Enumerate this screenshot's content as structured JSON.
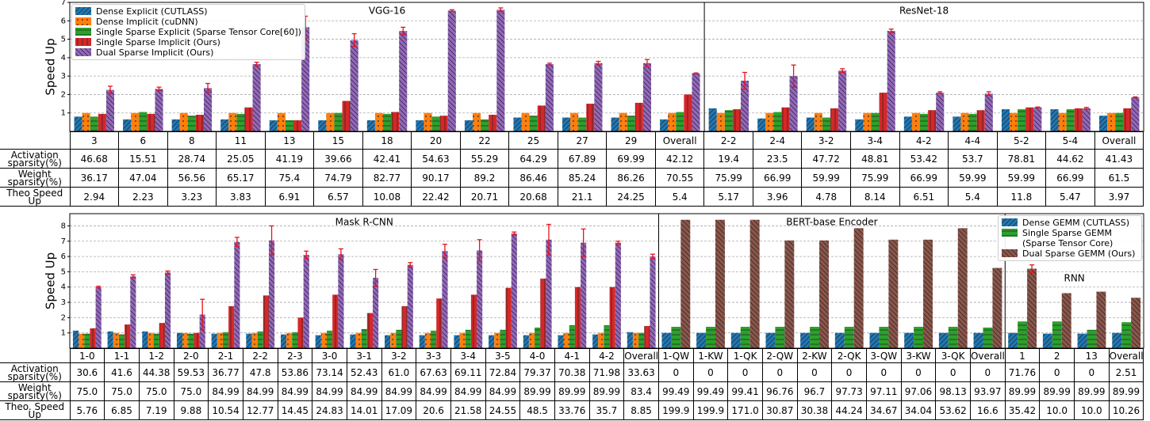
{
  "chart_data": [
    {
      "type": "bar",
      "y_label": "Speed Up",
      "ylim": [
        0,
        7
      ],
      "yticks": [
        1,
        2,
        3,
        4,
        5,
        6,
        7
      ],
      "grid": true,
      "legend": "upper left",
      "groups": [
        {
          "name": "VGG-16",
          "categories": [
            "3",
            "6",
            "8",
            "11",
            "13",
            "15",
            "18",
            "20",
            "22",
            "25",
            "27",
            "29",
            "Overall"
          ]
        },
        {
          "name": "ResNet-18",
          "categories": [
            "2-2",
            "2-4",
            "3-2",
            "3-4",
            "4-2",
            "4-4",
            "5-2",
            "5-4",
            "Overall"
          ]
        }
      ],
      "series": [
        {
          "name": "Dense Explicit (CUTLASS)",
          "color": "#1f77b4",
          "hatch": "/",
          "values": [
            0.8,
            0.65,
            0.65,
            0.65,
            0.6,
            0.6,
            0.6,
            0.6,
            0.6,
            0.75,
            0.75,
            0.75,
            0.65,
            1.25,
            0.7,
            0.75,
            0.65,
            0.8,
            0.8,
            1.2,
            1.2,
            0.85
          ]
        },
        {
          "name": "Dense Implicit (cuDNN)",
          "color": "#ff7f0e",
          "hatch": ".",
          "values": [
            1.0,
            1.0,
            1.0,
            1.0,
            1.0,
            1.0,
            1.0,
            1.0,
            1.0,
            1.0,
            1.0,
            1.0,
            1.0,
            1.0,
            1.0,
            1.0,
            1.0,
            1.0,
            1.0,
            1.0,
            1.0,
            1.0
          ]
        },
        {
          "name": "Single Sparse Explicit (Sparse Tensor Core[60])",
          "color": "#2ca02c",
          "hatch": "-",
          "values": [
            0.8,
            1.05,
            0.85,
            0.95,
            0.6,
            1.0,
            0.95,
            0.8,
            0.65,
            0.85,
            0.75,
            0.85,
            1.05,
            1.15,
            1.05,
            0.75,
            1.0,
            0.95,
            0.95,
            1.2,
            1.2,
            1.0
          ]
        },
        {
          "name": "Single Sparse Implicit (Ours)",
          "color": "#d62728",
          "hatch": "|",
          "values": [
            0.95,
            0.95,
            0.9,
            1.3,
            0.6,
            1.65,
            1.05,
            0.85,
            0.9,
            1.4,
            1.5,
            1.55,
            2.0,
            1.2,
            1.3,
            1.25,
            2.1,
            1.15,
            1.15,
            1.3,
            1.25,
            1.25
          ]
        },
        {
          "name": "Dual Sparse Implicit (Ours)",
          "color": "#9467bd",
          "hatch": "\\",
          "values": [
            2.25,
            2.3,
            2.35,
            3.65,
            5.65,
            4.95,
            5.45,
            6.55,
            6.6,
            3.65,
            3.7,
            3.7,
            3.15,
            2.75,
            3.0,
            3.3,
            5.45,
            2.1,
            2.05,
            1.3,
            1.25,
            1.85
          ],
          "errors": [
            0.2,
            0.1,
            0.25,
            0.1,
            0.6,
            0.35,
            0.2,
            0.05,
            0.1,
            0.05,
            0.1,
            0.2,
            0.02,
            0.45,
            0.6,
            0.1,
            0.1,
            0.05,
            0.1,
            0.02,
            0.05,
            0.02
          ]
        }
      ],
      "table": {
        "rows": [
          {
            "label": "Activation sparsity(%)",
            "values": [
              "46.68",
              "15.51",
              "28.74",
              "25.05",
              "41.19",
              "39.66",
              "42.41",
              "54.63",
              "55.29",
              "64.29",
              "67.89",
              "69.99",
              "42.12",
              "19.4",
              "23.5",
              "47.72",
              "48.81",
              "53.42",
              "53.7",
              "78.81",
              "44.62",
              "41.43"
            ]
          },
          {
            "label": "Weight sparsity(%)",
            "values": [
              "36.17",
              "47.04",
              "56.56",
              "65.17",
              "75.4",
              "74.79",
              "82.77",
              "90.17",
              "89.2",
              "86.46",
              "85.24",
              "86.26",
              "70.55",
              "75.99",
              "66.99",
              "59.99",
              "75.99",
              "66.99",
              "59.99",
              "59.99",
              "66.99",
              "61.5"
            ]
          },
          {
            "label": "Theo Speed Up",
            "values": [
              "2.94",
              "2.23",
              "3.23",
              "3.83",
              "6.91",
              "6.57",
              "10.08",
              "22.42",
              "20.71",
              "20.68",
              "21.1",
              "24.25",
              "5.4",
              "5.17",
              "3.96",
              "4.78",
              "8.14",
              "6.51",
              "5.4",
              "11.8",
              "5.47",
              "3.97"
            ]
          }
        ]
      }
    },
    {
      "type": "bar",
      "y_label": "Speed Up",
      "ylim": [
        0,
        8.8
      ],
      "yticks": [
        1,
        2,
        3,
        4,
        5,
        6,
        7,
        8
      ],
      "grid": true,
      "legend": "upper right",
      "groups": [
        {
          "name": "Mask R-CNN",
          "categories": [
            "1-0",
            "1-1",
            "1-2",
            "2-0",
            "2-1",
            "2-2",
            "2-3",
            "3-0",
            "3-1",
            "3-2",
            "3-3",
            "3-4",
            "3-5",
            "4-0",
            "4-1",
            "4-2",
            "Overall"
          ]
        },
        {
          "name": "BERT-base Encoder",
          "categories": [
            "1-QW",
            "1-KW",
            "1-QK",
            "2-QW",
            "2-KW",
            "2-QK",
            "3-QW",
            "3-KW",
            "3-QK",
            "Overall"
          ]
        },
        {
          "name": "RNN",
          "categories": [
            "1",
            "2",
            "13",
            "Overall"
          ]
        }
      ],
      "series": [
        {
          "color": "#1f77b4",
          "hatch": "/",
          "values": [
            1.15,
            1.1,
            1.1,
            1.0,
            0.95,
            0.95,
            0.9,
            0.85,
            0.9,
            0.85,
            0.85,
            0.85,
            0.85,
            0.85,
            0.85,
            0.9,
            1.05,
            null,
            null,
            null,
            null,
            null,
            null,
            null,
            null,
            null,
            null,
            null,
            null,
            null,
            null
          ]
        },
        {
          "color": "#ff7f0e",
          "hatch": ".",
          "values": [
            0.95,
            1.0,
            1.0,
            1.0,
            1.0,
            1.0,
            1.0,
            1.0,
            1.0,
            1.0,
            1.0,
            1.0,
            1.0,
            1.0,
            1.0,
            1.0,
            1.0,
            null,
            null,
            null,
            null,
            null,
            null,
            null,
            null,
            null,
            null,
            null,
            null,
            null,
            null
          ]
        },
        {
          "color": "#2ca02c",
          "hatch": "-",
          "values": [
            0.95,
            0.9,
            0.95,
            0.95,
            1.05,
            1.1,
            1.05,
            1.15,
            1.25,
            1.2,
            1.15,
            1.2,
            1.2,
            1.35,
            1.5,
            1.5,
            1.0,
            null,
            null,
            null,
            null,
            null,
            null,
            null,
            null,
            null,
            null,
            null,
            null,
            null,
            null
          ]
        },
        {
          "color": "#d62728",
          "hatch": "|",
          "values": [
            1.3,
            1.55,
            1.65,
            1.0,
            2.75,
            3.45,
            2.0,
            3.5,
            2.3,
            2.75,
            3.25,
            3.5,
            3.95,
            4.55,
            4.0,
            4.0,
            1.45,
            null,
            null,
            null,
            null,
            null,
            null,
            null,
            null,
            null,
            null,
            null,
            null,
            null,
            null
          ]
        },
        {
          "color": "#9467bd",
          "hatch": "\\",
          "values": [
            4.0,
            4.7,
            4.95,
            2.2,
            6.95,
            7.05,
            6.1,
            6.15,
            4.6,
            5.45,
            6.35,
            6.4,
            7.5,
            7.1,
            6.9,
            6.9,
            6.0,
            null,
            null,
            null,
            null,
            null,
            null,
            null,
            null,
            null,
            null,
            null,
            null,
            null,
            null
          ],
          "errors": [
            0.05,
            0.1,
            0.1,
            1.0,
            0.3,
            0.95,
            0.25,
            0.35,
            0.55,
            0.15,
            0.45,
            0.7,
            0.1,
            1.0,
            0.9,
            0.1,
            0.15,
            null,
            null,
            null,
            null,
            null,
            null,
            null,
            null,
            null,
            null,
            null,
            null,
            null,
            null
          ]
        },
        {
          "name": "Dense GEMM (CUTLASS)",
          "color": "#1f77b4",
          "hatch": "/",
          "values": [
            null,
            null,
            null,
            null,
            null,
            null,
            null,
            null,
            null,
            null,
            null,
            null,
            null,
            null,
            null,
            null,
            null,
            1.0,
            1.0,
            1.0,
            1.0,
            1.0,
            1.0,
            1.0,
            1.0,
            1.0,
            1.0,
            1.0,
            0.95,
            0.95,
            1.0
          ]
        },
        {
          "name": "Single Sparse GEMM (Sparse Tensor Core)",
          "color": "#2ca02c",
          "hatch": "-",
          "values": [
            null,
            null,
            null,
            null,
            null,
            null,
            null,
            null,
            null,
            null,
            null,
            null,
            null,
            null,
            null,
            null,
            null,
            1.4,
            1.4,
            1.4,
            1.4,
            1.4,
            1.4,
            1.4,
            1.4,
            1.4,
            1.35,
            1.75,
            1.75,
            1.2,
            1.7
          ]
        },
        {
          "name": "Dual Sparse GEMM (Ours)",
          "color": "#8c564b",
          "hatch": "\\",
          "values": [
            null,
            null,
            null,
            null,
            null,
            null,
            null,
            null,
            null,
            null,
            null,
            null,
            null,
            null,
            null,
            null,
            null,
            8.4,
            8.4,
            8.4,
            7.05,
            7.05,
            7.85,
            7.1,
            7.1,
            7.85,
            5.25,
            5.2,
            3.6,
            3.7,
            3.3
          ],
          "errors": [
            null,
            null,
            null,
            null,
            null,
            null,
            null,
            null,
            null,
            null,
            null,
            null,
            null,
            null,
            null,
            null,
            null,
            null,
            null,
            null,
            null,
            null,
            null,
            null,
            null,
            null,
            null,
            0.25,
            null,
            null,
            null
          ]
        }
      ],
      "table": {
        "rows": [
          {
            "label": "Activation sparsity(%)",
            "values": [
              "30.6",
              "41.6",
              "44.38",
              "59.53",
              "36.77",
              "47.8",
              "53.86",
              "73.14",
              "52.43",
              "61.0",
              "67.63",
              "69.11",
              "72.84",
              "79.37",
              "70.38",
              "71.98",
              "33.63",
              "0",
              "0",
              "0",
              "0",
              "0",
              "0",
              "0",
              "0",
              "0",
              "0",
              "71.76",
              "0",
              "0",
              "2.51"
            ]
          },
          {
            "label": "Weight sparsity(%)",
            "values": [
              "75.0",
              "75.0",
              "75.0",
              "75.0",
              "84.99",
              "84.99",
              "84.99",
              "84.99",
              "84.99",
              "84.99",
              "84.99",
              "84.99",
              "84.99",
              "89.99",
              "89.99",
              "89.99",
              "83.4",
              "99.49",
              "99.49",
              "99.41",
              "96.76",
              "96.7",
              "97.73",
              "97.11",
              "97.06",
              "98.13",
              "93.97",
              "89.99",
              "89.99",
              "89.99",
              "89.99"
            ]
          },
          {
            "label": "Theo. Speed Up",
            "values": [
              "5.76",
              "6.85",
              "7.19",
              "9.88",
              "10.54",
              "12.77",
              "14.45",
              "24.83",
              "14.01",
              "17.09",
              "20.6",
              "21.58",
              "24.55",
              "48.5",
              "33.76",
              "35.7",
              "8.85",
              "199.9",
              "199.9",
              "171.0",
              "30.87",
              "30.38",
              "44.24",
              "34.67",
              "34.04",
              "53.62",
              "16.6",
              "35.42",
              "10.0",
              "10.0",
              "10.26"
            ]
          }
        ]
      }
    }
  ]
}
